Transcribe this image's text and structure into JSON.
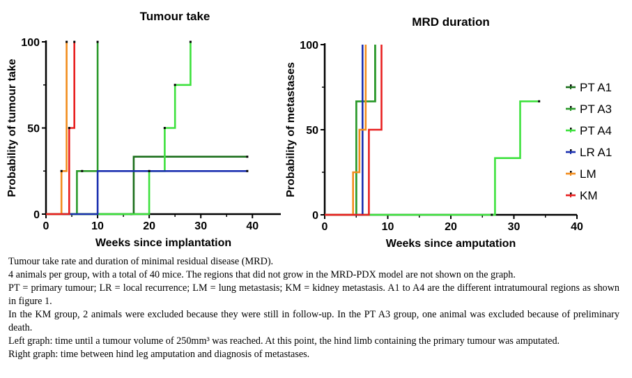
{
  "chart_data": [
    {
      "type": "line",
      "title": "Tumour take",
      "xlabel": "Weeks since implantation",
      "ylabel": "Probability of tumour take",
      "xlim": [
        0,
        45
      ],
      "ylim": [
        0,
        100
      ],
      "x_ticks": [
        0,
        10,
        20,
        30,
        40
      ],
      "y_ticks": [
        0,
        50,
        100
      ],
      "grid": false,
      "step": true,
      "series": [
        {
          "name": "PT A1",
          "color": "#1a6e1a",
          "points": [
            [
              0,
              0
            ],
            [
              17,
              0
            ],
            [
              17,
              33.3
            ],
            [
              39,
              33.3
            ]
          ],
          "censored": [
            [
              16.5,
              0
            ],
            [
              39,
              33.3
            ]
          ]
        },
        {
          "name": "PT A3",
          "color": "#2a9a2a",
          "points": [
            [
              0,
              0
            ],
            [
              6,
              0
            ],
            [
              6,
              25
            ],
            [
              10,
              25
            ],
            [
              10,
              100
            ]
          ],
          "censored": [
            [
              7,
              25
            ],
            [
              10,
              100
            ]
          ]
        },
        {
          "name": "PT A4",
          "color": "#3de13d",
          "points": [
            [
              0,
              0
            ],
            [
              20,
              0
            ],
            [
              20,
              25
            ],
            [
              23,
              25
            ],
            [
              23,
              50
            ],
            [
              25,
              50
            ],
            [
              25,
              75
            ],
            [
              28,
              75
            ],
            [
              28,
              100
            ]
          ],
          "censored": [
            [
              23,
              50
            ],
            [
              25,
              75
            ],
            [
              28,
              100
            ]
          ]
        },
        {
          "name": "LR A1",
          "color": "#1a2fb0",
          "points": [
            [
              0,
              0
            ],
            [
              10,
              0
            ],
            [
              10,
              25
            ],
            [
              39,
              25
            ]
          ],
          "censored": [
            [
              20,
              25
            ],
            [
              39,
              25
            ]
          ]
        },
        {
          "name": "LM",
          "color": "#f28c1c",
          "points": [
            [
              0,
              0
            ],
            [
              3,
              0
            ],
            [
              3,
              25
            ],
            [
              4,
              25
            ],
            [
              4,
              100
            ]
          ],
          "censored": [
            [
              3,
              25
            ],
            [
              4,
              100
            ]
          ]
        },
        {
          "name": "KM",
          "color": "#e82020",
          "points": [
            [
              0,
              0
            ],
            [
              4.5,
              0
            ],
            [
              4.5,
              50
            ],
            [
              5.5,
              50
            ],
            [
              5.5,
              100
            ]
          ],
          "censored": [
            [
              4.5,
              50
            ],
            [
              5.5,
              100
            ]
          ]
        }
      ]
    },
    {
      "type": "line",
      "title": "MRD duration",
      "xlabel": "Weeks since amputation",
      "ylabel": "Probability of metastases",
      "xlim": [
        0,
        40
      ],
      "ylim": [
        0,
        100
      ],
      "x_ticks": [
        0,
        10,
        20,
        30,
        40
      ],
      "y_ticks": [
        0,
        50,
        100
      ],
      "grid": false,
      "step": true,
      "legend_position": "right",
      "series": [
        {
          "name": "PT A1",
          "color": "#1a6e1a",
          "points": [
            [
              0,
              0
            ],
            [
              5,
              0
            ],
            [
              5,
              66.7
            ],
            [
              8,
              66.7
            ],
            [
              8,
              100
            ]
          ],
          "censored": []
        },
        {
          "name": "PT A3",
          "color": "#2a9a2a",
          "points": [
            [
              0,
              0
            ],
            [
              5,
              0
            ],
            [
              5,
              66.7
            ],
            [
              8,
              66.7
            ],
            [
              8,
              100
            ]
          ],
          "censored": []
        },
        {
          "name": "PT A4",
          "color": "#3de13d",
          "points": [
            [
              0,
              0
            ],
            [
              27,
              0
            ],
            [
              27,
              33.3
            ],
            [
              31,
              33.3
            ],
            [
              31,
              66.7
            ],
            [
              34,
              66.7
            ]
          ],
          "censored": [
            [
              26.5,
              0
            ],
            [
              34,
              66.7
            ]
          ]
        },
        {
          "name": "LR A1",
          "color": "#1a2fb0",
          "points": [
            [
              0,
              0
            ],
            [
              6,
              0
            ],
            [
              6,
              100
            ]
          ],
          "censored": []
        },
        {
          "name": "LM",
          "color": "#f28c1c",
          "points": [
            [
              0,
              0
            ],
            [
              4.5,
              0
            ],
            [
              4.5,
              25
            ],
            [
              5.5,
              25
            ],
            [
              5.5,
              50
            ],
            [
              6.5,
              50
            ],
            [
              6.5,
              100
            ]
          ],
          "censored": []
        },
        {
          "name": "KM",
          "color": "#e82020",
          "points": [
            [
              0,
              0
            ],
            [
              7,
              0
            ],
            [
              7,
              50
            ],
            [
              9,
              50
            ],
            [
              9,
              100
            ]
          ],
          "censored": []
        }
      ]
    }
  ],
  "caption": [
    "Tumour take rate and duration of minimal residual disease (MRD).",
    "4 animals per group, with a total of 40 mice. The regions that did not grow in the MRD-PDX model are not shown on the graph.",
    "PT = primary tumour; LR = local recurrence; LM = lung metastasis; KM = kidney metastasis. A1 to A4 are the different intratumoural regions as shown in figure 1.",
    "In the KM group, 2 animals were excluded because they were still in follow-up. In the PT A3 group, one animal was excluded because of preliminary death.",
    "Left graph: time until a tumour volume of 250mm³ was reached. At this point, the hind limb containing the primary tumour was amputated.",
    "Right graph: time between hind leg amputation and diagnosis of metastases."
  ]
}
